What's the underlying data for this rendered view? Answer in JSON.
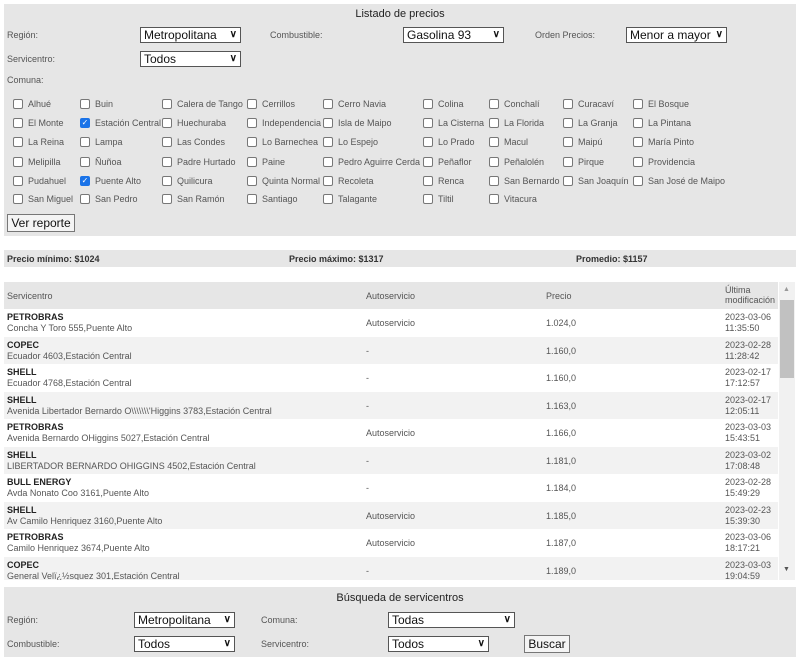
{
  "filters": {
    "title": "Listado de precios",
    "region_label": "Región:",
    "region_value": "Metropolitana",
    "fuel_label": "Combustible:",
    "fuel_value": "Gasolina 93",
    "order_label": "Orden Precios:",
    "order_value": "Menor a mayor",
    "station_label": "Servicentro:",
    "station_value": "Todos",
    "comuna_label": "Comuna:",
    "comunas": [
      {
        "label": "Alhué",
        "checked": false
      },
      {
        "label": "Buin",
        "checked": false
      },
      {
        "label": "Calera de Tango",
        "checked": false
      },
      {
        "label": "Cerrillos",
        "checked": false
      },
      {
        "label": "Cerro Navia",
        "checked": false
      },
      {
        "label": "Colina",
        "checked": false
      },
      {
        "label": "Conchalí",
        "checked": false
      },
      {
        "label": "Curacaví",
        "checked": false
      },
      {
        "label": "El Bosque",
        "checked": false
      },
      {
        "label": "El Monte",
        "checked": false
      },
      {
        "label": "Estación Central",
        "checked": true
      },
      {
        "label": "Huechuraba",
        "checked": false
      },
      {
        "label": "Independencia",
        "checked": false
      },
      {
        "label": "Isla de Maipo",
        "checked": false
      },
      {
        "label": "La Cisterna",
        "checked": false
      },
      {
        "label": "La Florida",
        "checked": false
      },
      {
        "label": "La Granja",
        "checked": false
      },
      {
        "label": "La Pintana",
        "checked": false
      },
      {
        "label": "La Reina",
        "checked": false
      },
      {
        "label": "Lampa",
        "checked": false
      },
      {
        "label": "Las Condes",
        "checked": false
      },
      {
        "label": "Lo Barnechea",
        "checked": false
      },
      {
        "label": "Lo Espejo",
        "checked": false
      },
      {
        "label": "Lo Prado",
        "checked": false
      },
      {
        "label": "Macul",
        "checked": false
      },
      {
        "label": "Maipú",
        "checked": false
      },
      {
        "label": "María Pinto",
        "checked": false
      },
      {
        "label": "Melipilla",
        "checked": false
      },
      {
        "label": "Ñuñoa",
        "checked": false
      },
      {
        "label": "Padre Hurtado",
        "checked": false
      },
      {
        "label": "Paine",
        "checked": false
      },
      {
        "label": "Pedro Aguirre Cerda",
        "checked": false
      },
      {
        "label": "Peñaflor",
        "checked": false
      },
      {
        "label": "Peñalolén",
        "checked": false
      },
      {
        "label": "Pirque",
        "checked": false
      },
      {
        "label": "Providencia",
        "checked": false
      },
      {
        "label": "Pudahuel",
        "checked": false
      },
      {
        "label": "Puente Alto",
        "checked": true
      },
      {
        "label": "Quilicura",
        "checked": false
      },
      {
        "label": "Quinta Normal",
        "checked": false
      },
      {
        "label": "Recoleta",
        "checked": false
      },
      {
        "label": "Renca",
        "checked": false
      },
      {
        "label": "San Bernardo",
        "checked": false
      },
      {
        "label": "San Joaquín",
        "checked": false
      },
      {
        "label": "San José de Maipo",
        "checked": false
      },
      {
        "label": "San Miguel",
        "checked": false
      },
      {
        "label": "San Pedro",
        "checked": false
      },
      {
        "label": "San Ramón",
        "checked": false
      },
      {
        "label": "Santiago",
        "checked": false
      },
      {
        "label": "Talagante",
        "checked": false
      },
      {
        "label": "Tiltil",
        "checked": false
      },
      {
        "label": "Vitacura",
        "checked": false
      }
    ],
    "report_button": "Ver reporte"
  },
  "stats": {
    "min": "Precio mínimo: $1024",
    "max": "Precio máximo: $1317",
    "avg": "Promedio: $1157"
  },
  "table": {
    "headers": [
      "Servicentro",
      "Autoservicio",
      "Precio",
      "Última",
      "modificación"
    ],
    "rows": [
      {
        "name": "PETROBRAS",
        "address": "Concha Y Toro 555,Puente Alto",
        "auto": "Autoservicio",
        "price": "1.024,0",
        "date": "2023-03-06",
        "time": "11:35:50"
      },
      {
        "name": "COPEC",
        "address": "Ecuador 4603,Estación Central",
        "auto": "-",
        "price": "1.160,0",
        "date": "2023-02-28",
        "time": "11:28:42"
      },
      {
        "name": "SHELL",
        "address": "Ecuador 4768,Estación Central",
        "auto": "-",
        "price": "1.160,0",
        "date": "2023-02-17",
        "time": "17:12:57"
      },
      {
        "name": "SHELL",
        "address": "Avenida Libertador Bernardo O\\\\\\\\\\\\\\'Higgins 3783,Estación Central",
        "auto": "-",
        "price": "1.163,0",
        "date": "2023-02-17",
        "time": "12:05:11"
      },
      {
        "name": "PETROBRAS",
        "address": "Avenida Bernardo OHiggins 5027,Estación Central",
        "auto": "Autoservicio",
        "price": "1.166,0",
        "date": "2023-03-03",
        "time": "15:43:51"
      },
      {
        "name": "SHELL",
        "address": "LIBERTADOR BERNARDO OHIGGINS 4502,Estación Central",
        "auto": "-",
        "price": "1.181,0",
        "date": "2023-03-02",
        "time": "17:08:48"
      },
      {
        "name": "BULL ENERGY",
        "address": "Avda Nonato Coo 3161,Puente Alto",
        "auto": "-",
        "price": "1.184,0",
        "date": "2023-02-28",
        "time": "15:49:29"
      },
      {
        "name": "SHELL",
        "address": "Av Camilo Henriquez 3160,Puente Alto",
        "auto": "Autoservicio",
        "price": "1.185,0",
        "date": "2023-02-23",
        "time": "15:39:30"
      },
      {
        "name": "PETROBRAS",
        "address": "Camilo Henriquez 3674,Puente Alto",
        "auto": "Autoservicio",
        "price": "1.187,0",
        "date": "2023-03-06",
        "time": "18:17:21"
      },
      {
        "name": "COPEC",
        "address": "General Velï¿½squez 301,Estación Central",
        "auto": "-",
        "price": "1.189,0",
        "date": "2023-03-03",
        "time": "19:04:59"
      }
    ]
  },
  "search": {
    "title": "Búsqueda de servicentros",
    "region_label": "Región:",
    "region_value": "Metropolitana",
    "comuna_label": "Comuna:",
    "comuna_value": "Todas",
    "fuel_label": "Combustible:",
    "fuel_value": "Todos",
    "station_label": "Servicentro:",
    "station_value": "Todos",
    "button": "Buscar"
  }
}
